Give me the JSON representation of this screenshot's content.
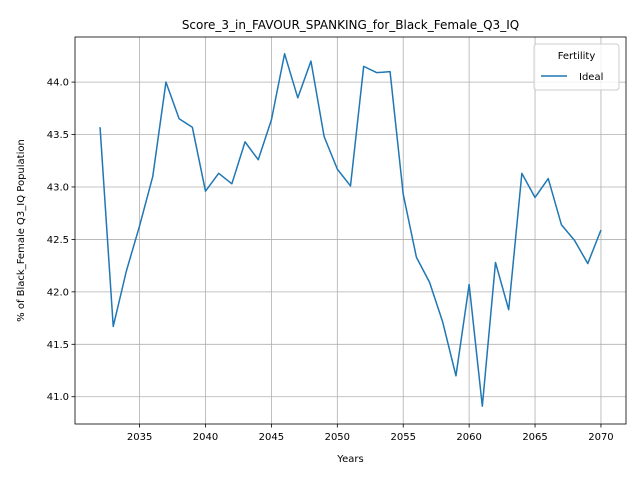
{
  "chart_data": {
    "type": "line",
    "title": "Score_3_in_FAVOUR_SPANKING_for_Black_Female_Q3_IQ",
    "xlabel": "Years",
    "ylabel": "% of Black_Female Q3_IQ Population",
    "xlim": [
      2030.1,
      2071.9
    ],
    "ylim": [
      40.74,
      44.43
    ],
    "xticks": [
      2035,
      2040,
      2045,
      2050,
      2055,
      2060,
      2065,
      2070
    ],
    "yticks": [
      41.0,
      41.5,
      42.0,
      42.5,
      43.0,
      43.5,
      44.0
    ],
    "grid": true,
    "legend": {
      "title": "Fertility",
      "placement": "top-right"
    },
    "series": [
      {
        "name": "Ideal",
        "color": "#1f77b4",
        "x": [
          2032,
          2033,
          2034,
          2035,
          2036,
          2037,
          2038,
          2039,
          2040,
          2041,
          2042,
          2043,
          2044,
          2045,
          2046,
          2047,
          2048,
          2049,
          2050,
          2051,
          2052,
          2053,
          2054,
          2055,
          2056,
          2057,
          2058,
          2059,
          2060,
          2061,
          2062,
          2063,
          2064,
          2065,
          2066,
          2067,
          2068,
          2069,
          2070
        ],
        "values": [
          43.57,
          41.67,
          42.2,
          42.63,
          43.1,
          44.0,
          43.65,
          43.57,
          42.96,
          43.13,
          43.03,
          43.43,
          43.26,
          43.64,
          44.27,
          43.85,
          44.2,
          43.48,
          43.17,
          43.01,
          44.15,
          44.09,
          44.1,
          42.93,
          42.33,
          42.09,
          41.71,
          41.2,
          42.07,
          40.91,
          42.28,
          41.83,
          43.13,
          42.9,
          43.08,
          42.64,
          42.49,
          42.27,
          42.59
        ]
      }
    ]
  }
}
